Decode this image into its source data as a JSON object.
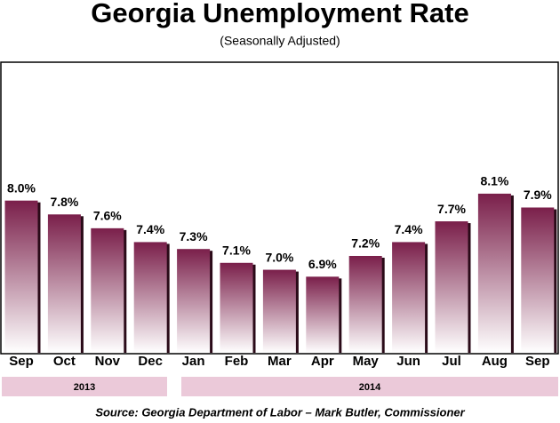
{
  "chart_data": {
    "type": "bar",
    "title": "Georgia Unemployment Rate",
    "subtitle": "(Seasonally Adjusted)",
    "categories": [
      "Sep",
      "Oct",
      "Nov",
      "Dec",
      "Jan",
      "Feb",
      "Mar",
      "Apr",
      "May",
      "Jun",
      "Jul",
      "Aug",
      "Sep"
    ],
    "values": [
      8.0,
      7.8,
      7.6,
      7.4,
      7.3,
      7.1,
      7.0,
      6.9,
      7.2,
      7.4,
      7.7,
      8.1,
      7.9
    ],
    "value_labels": [
      "8.0%",
      "7.8%",
      "7.6%",
      "7.4%",
      "7.3%",
      "7.1%",
      "7.0%",
      "6.9%",
      "7.2%",
      "7.4%",
      "7.7%",
      "8.1%",
      "7.9%"
    ],
    "color": "#7a1f4a",
    "ylim": [
      5.8,
      10.0
    ],
    "groups": [
      "2013",
      "2014"
    ],
    "source": "Source: Georgia Department of Labor – Mark  Butler, Commissioner"
  }
}
